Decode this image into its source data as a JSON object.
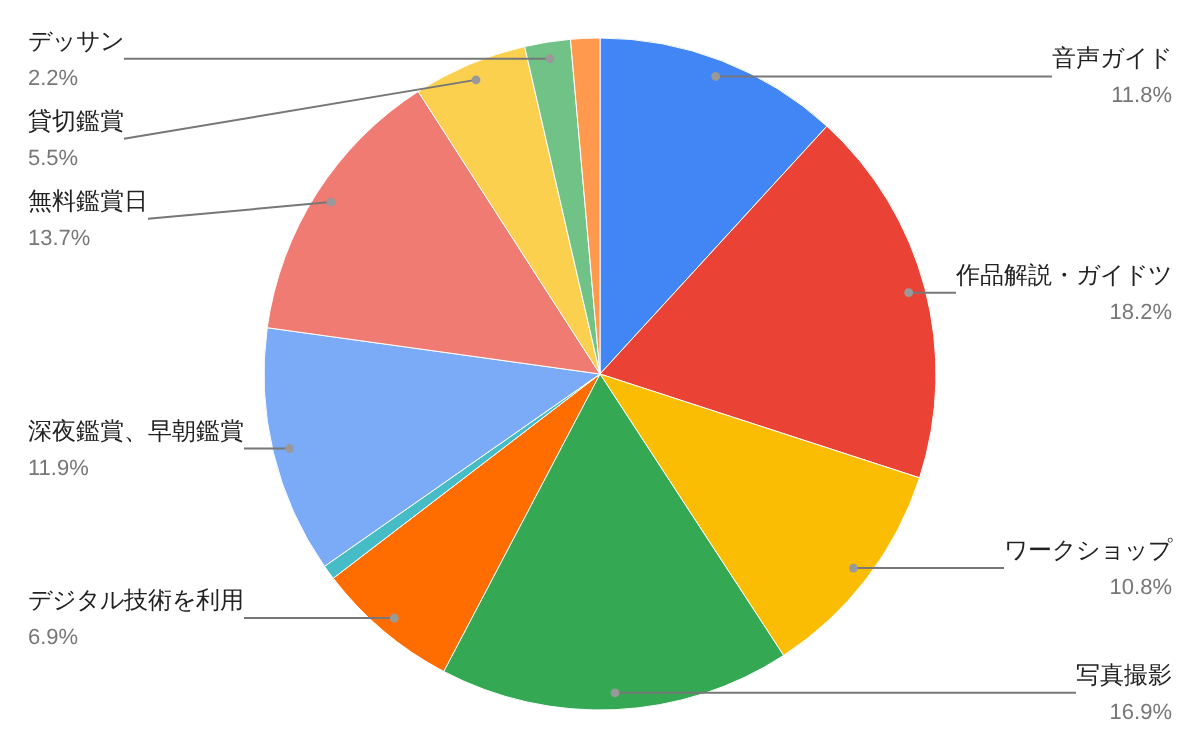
{
  "chart_data": {
    "type": "pie",
    "categories": [
      "音声ガイド",
      "作品解説・ガイドツ",
      "ワークショップ",
      "写真撮影",
      "デジタル技術を利用",
      null,
      "深夜鑑賞、早朝鑑賞",
      "無料鑑賞日",
      "貸切鑑賞",
      "デッサン",
      null
    ],
    "values": [
      11.8,
      18.2,
      10.8,
      16.9,
      6.9,
      0.7,
      11.9,
      13.7,
      5.5,
      2.2,
      1.4
    ],
    "colors": [
      "#4285f4",
      "#ea4335",
      "#fbbc04",
      "#34a853",
      "#ff6d01",
      "#46bdc6",
      "#7baaf7",
      "#f07b72",
      "#fcd04f",
      "#71c287",
      "#ff994d"
    ],
    "value_labels": [
      "11.8%",
      "18.2%",
      "10.8%",
      "16.9%",
      "6.9%",
      null,
      "11.9%",
      "13.7%",
      "5.5%",
      "2.2%",
      null
    ]
  }
}
